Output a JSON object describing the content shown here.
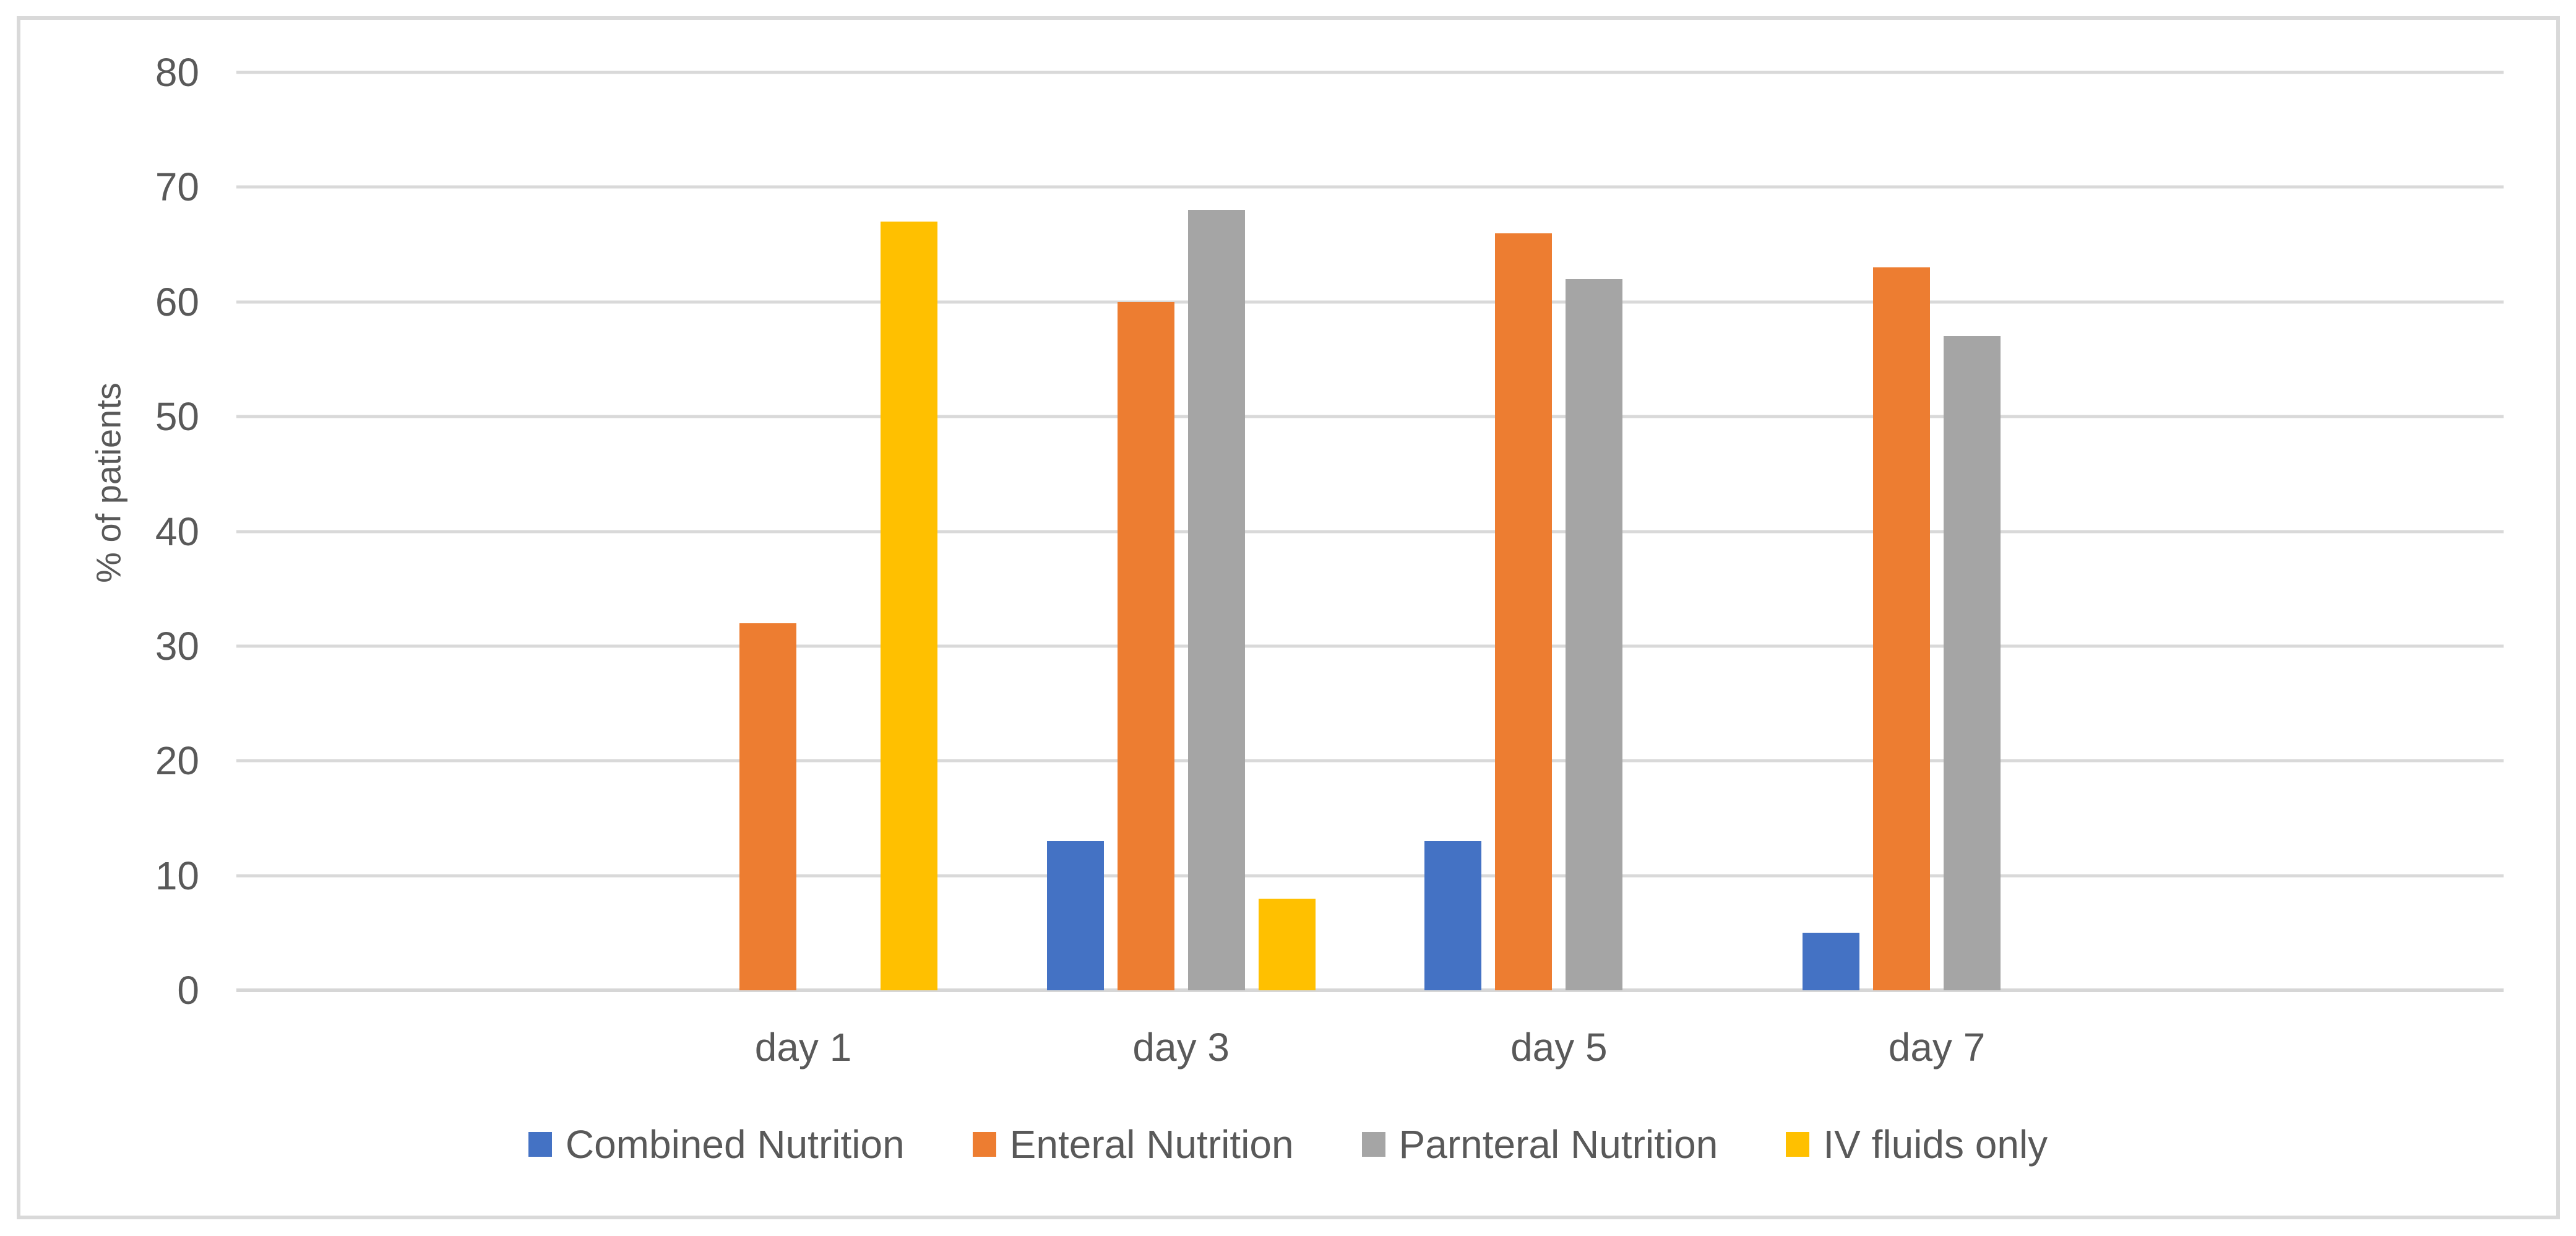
{
  "figure": {
    "background": "#FFFFFF",
    "border_color": "#D9D9D9",
    "text_color": "#595959",
    "gridline_color": "#D9D9D9"
  },
  "axis": {
    "y_title": "% of patients",
    "y_ticks_top_to_bottom": [
      "80",
      "70",
      "60",
      "50",
      "40",
      "30",
      "20",
      "10",
      "0"
    ]
  },
  "chart_data": {
    "type": "bar",
    "title": "",
    "xlabel": "",
    "ylabel": "% of patients",
    "categories": [
      "day 1",
      "day 3",
      "day 5",
      "day 7"
    ],
    "series": [
      {
        "name": "Combined Nutrition",
        "color": "#4472C4",
        "values": [
          0,
          13,
          13,
          5
        ]
      },
      {
        "name": "Enteral Nutrition",
        "color": "#ED7D31",
        "values": [
          32,
          60,
          66,
          63
        ]
      },
      {
        "name": "Parnteral Nutrition",
        "color": "#A5A5A5",
        "values": [
          0,
          68,
          62,
          57
        ]
      },
      {
        "name": "IV fluids only",
        "color": "#FFC000",
        "values": [
          67,
          8,
          0,
          0
        ]
      }
    ],
    "ylim": [
      0,
      80
    ],
    "y_tick_step": 10,
    "grid": true,
    "legend_position": "bottom",
    "layout_hints": {
      "total_category_slots": 6,
      "first_data_slot": 1
    }
  }
}
